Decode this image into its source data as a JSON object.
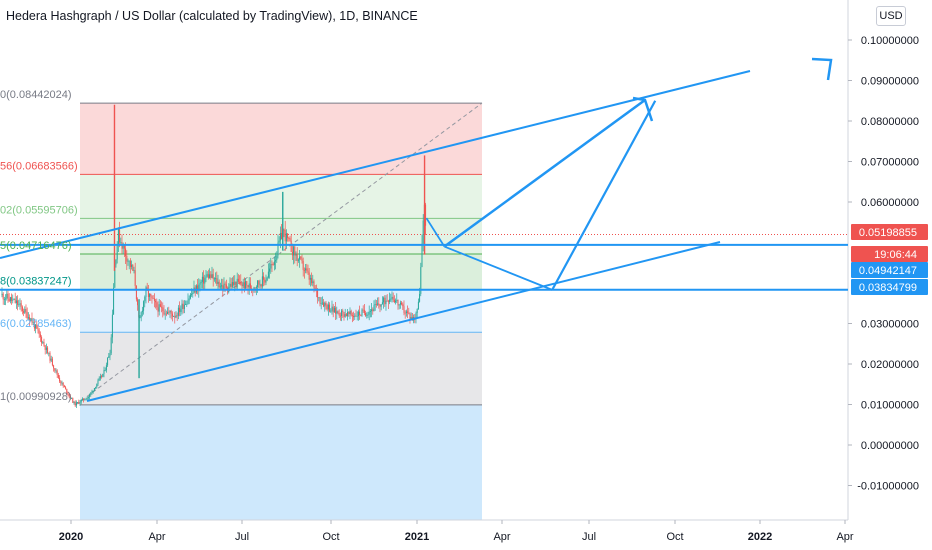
{
  "title": "Hedera Hashgraph / US Dollar (calculated by TradingView), 1D, BINANCE",
  "currency_button": "USD",
  "colors": {
    "up": "#26a69a",
    "down": "#ef5350",
    "trend": "#2196f3",
    "price_tag": "#ef5350",
    "level_tag": "#2196f3"
  },
  "price_tags": [
    {
      "label": "0.05198855",
      "role": "last-price",
      "color": "#ef5350"
    },
    {
      "label": "19:06:44",
      "role": "countdown",
      "color": "#ef5350"
    },
    {
      "label": "0.04942147",
      "role": "level",
      "color": "#2196f3"
    },
    {
      "label": "0.03834799",
      "role": "level",
      "color": "#2196f3"
    }
  ],
  "fib_labels": [
    {
      "text": "0(0.08442024)",
      "color": "#787b86"
    },
    {
      "text": "56(0.06683566)",
      "color": "#ef5350"
    },
    {
      "text": "02(0.05595706)",
      "color": "#81c784"
    },
    {
      "text": "5(0.04716476)",
      "color": "#4caf50"
    },
    {
      "text": "8(0.03837247)",
      "color": "#009688"
    },
    {
      "text": "6(0.02785463)",
      "color": "#64b5f6"
    },
    {
      "text": "1(0.00990928)",
      "color": "#787b86"
    }
  ],
  "chart_data": {
    "type": "candlestick",
    "title": "Hedera Hashgraph / US Dollar (calculated by TradingView), 1D, BINANCE",
    "ylim": [
      -0.015,
      0.105
    ],
    "y_ticks": [
      "0.10000000",
      "0.09000000",
      "0.08000000",
      "0.07000000",
      "0.06000000",
      "0.03000000",
      "0.02000000",
      "0.01000000",
      "0.00000000",
      "-0.01000000"
    ],
    "x_ticks": [
      "2020",
      "Apr",
      "Jul",
      "Oct",
      "2021",
      "Apr",
      "Jul",
      "Oct",
      "2022",
      "Apr"
    ],
    "fib_retracement": {
      "levels": [
        0.08442024,
        0.06683566,
        0.05595706,
        0.04716476,
        0.03837247,
        0.02785463,
        0.00990928
      ]
    },
    "horizontal_levels": [
      0.04942147,
      0.03834799
    ],
    "last_price": 0.05198855,
    "series_anchors": [
      [
        "2019-10-20",
        0.037
      ],
      [
        "2019-11-05",
        0.035
      ],
      [
        "2019-11-20",
        0.031
      ],
      [
        "2019-12-05",
        0.024
      ],
      [
        "2019-12-20",
        0.016
      ],
      [
        "2020-01-05",
        0.01
      ],
      [
        "2020-01-20",
        0.012
      ],
      [
        "2020-02-05",
        0.018
      ],
      [
        "2020-02-12",
        0.024
      ],
      [
        "2020-02-16",
        0.044
      ],
      [
        "2020-02-20",
        0.052
      ],
      [
        "2020-03-01",
        0.046
      ],
      [
        "2020-03-08",
        0.042
      ],
      [
        "2020-03-13",
        0.03
      ],
      [
        "2020-03-20",
        0.038
      ],
      [
        "2020-04-01",
        0.034
      ],
      [
        "2020-04-20",
        0.032
      ],
      [
        "2020-05-10",
        0.038
      ],
      [
        "2020-05-25",
        0.042
      ],
      [
        "2020-06-10",
        0.039
      ],
      [
        "2020-06-25",
        0.04
      ],
      [
        "2020-07-10",
        0.039
      ],
      [
        "2020-07-25",
        0.041
      ],
      [
        "2020-08-05",
        0.047
      ],
      [
        "2020-08-12",
        0.053
      ],
      [
        "2020-08-20",
        0.049
      ],
      [
        "2020-09-05",
        0.043
      ],
      [
        "2020-09-20",
        0.036
      ],
      [
        "2020-10-05",
        0.033
      ],
      [
        "2020-10-25",
        0.032
      ],
      [
        "2020-11-10",
        0.033
      ],
      [
        "2020-11-25",
        0.035
      ],
      [
        "2020-12-05",
        0.037
      ],
      [
        "2020-12-15",
        0.034
      ],
      [
        "2020-12-28",
        0.031
      ],
      [
        "2021-01-03",
        0.035
      ],
      [
        "2021-01-06",
        0.048
      ],
      [
        "2021-01-09",
        0.06
      ],
      [
        "2021-01-11",
        0.052
      ]
    ],
    "projected_path": [
      [
        "2021-01-11",
        0.056
      ],
      [
        "2021-01-30",
        0.049
      ],
      [
        "2021-05-24",
        0.0383
      ],
      [
        "2021-09-10",
        0.085
      ]
    ]
  }
}
